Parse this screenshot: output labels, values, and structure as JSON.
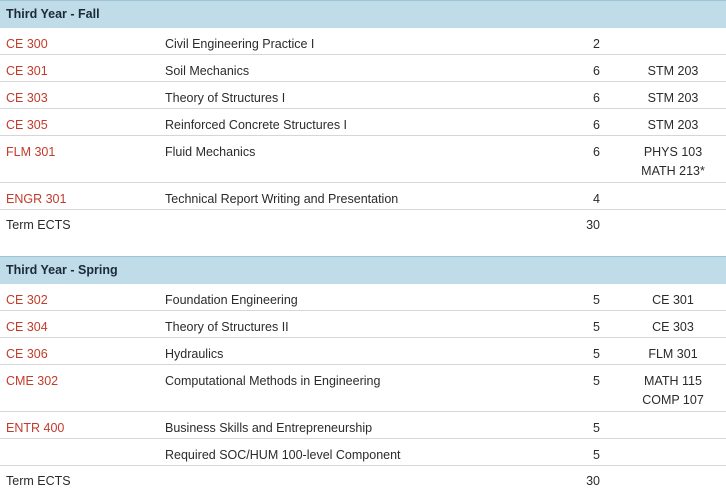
{
  "terms": [
    {
      "title": "Third Year - Fall",
      "courses": [
        {
          "code": "CE 300",
          "title": "Civil Engineering Practice I",
          "ects": "2",
          "prereq": []
        },
        {
          "code": "CE 301",
          "title": "Soil Mechanics",
          "ects": "6",
          "prereq": [
            "STM 203"
          ]
        },
        {
          "code": "CE 303",
          "title": "Theory of Structures I",
          "ects": "6",
          "prereq": [
            "STM 203"
          ]
        },
        {
          "code": "CE 305",
          "title": "Reinforced Concrete Structures I",
          "ects": "6",
          "prereq": [
            "STM 203"
          ]
        },
        {
          "code": "FLM 301",
          "title": "Fluid Mechanics",
          "ects": "6",
          "prereq": [
            "PHYS 103",
            "MATH 213*"
          ]
        },
        {
          "code": "ENGR 301",
          "title": "Technical Report Writing and Presentation",
          "ects": "4",
          "prereq": []
        }
      ],
      "total_label": "Term ECTS",
      "total": "30"
    },
    {
      "title": "Third Year - Spring",
      "courses": [
        {
          "code": "CE 302",
          "title": "Foundation Engineering",
          "ects": "5",
          "prereq": [
            "CE 301"
          ]
        },
        {
          "code": "CE 304",
          "title": "Theory of Structures II",
          "ects": "5",
          "prereq": [
            "CE 303"
          ]
        },
        {
          "code": "CE 306",
          "title": "Hydraulics",
          "ects": "5",
          "prereq": [
            "FLM 301"
          ]
        },
        {
          "code": "CME 302",
          "title": "Computational Methods in Engineering",
          "ects": "5",
          "prereq": [
            "MATH 115",
            "COMP 107"
          ]
        },
        {
          "code": "ENTR 400",
          "title": "Business Skills and Entrepreneurship",
          "ects": "5",
          "prereq": []
        },
        {
          "code": "",
          "title": "Required SOC/HUM 100-level Component",
          "ects": "5",
          "prereq": []
        }
      ],
      "total_label": "Term ECTS",
      "total": "30"
    }
  ],
  "colors": {
    "header_bg": "#bfdce8",
    "course_code": "#c23b2b"
  }
}
